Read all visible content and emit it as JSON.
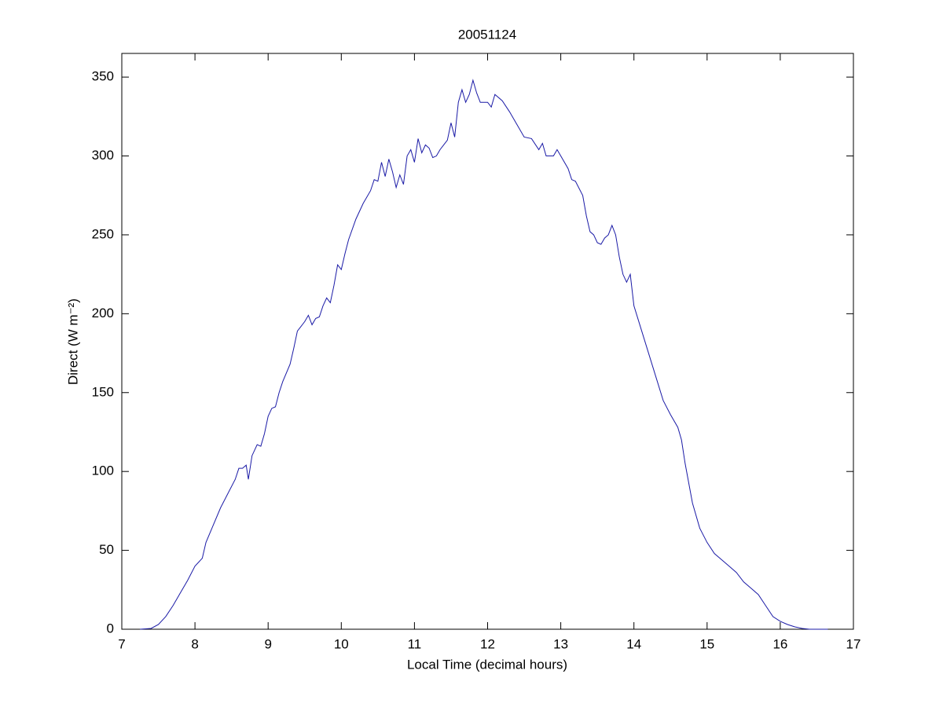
{
  "chart_data": {
    "type": "line",
    "title": "20051124",
    "xlabel": "Local Time (decimal hours)",
    "ylabel": "Direct (W m⁻²)",
    "color": "#1a1aa6",
    "x": [
      7.25,
      7.4,
      7.5,
      7.6,
      7.7,
      7.8,
      7.9,
      8.0,
      8.1,
      8.15,
      8.25,
      8.35,
      8.45,
      8.55,
      8.6,
      8.65,
      8.7,
      8.73,
      8.78,
      8.85,
      8.9,
      8.95,
      9.0,
      9.05,
      9.1,
      9.15,
      9.2,
      9.3,
      9.35,
      9.4,
      9.5,
      9.55,
      9.6,
      9.65,
      9.7,
      9.75,
      9.8,
      9.85,
      9.9,
      9.95,
      10.0,
      10.05,
      10.1,
      10.2,
      10.3,
      10.4,
      10.45,
      10.5,
      10.55,
      10.6,
      10.65,
      10.7,
      10.75,
      10.8,
      10.85,
      10.9,
      10.95,
      11.0,
      11.05,
      11.1,
      11.15,
      11.2,
      11.25,
      11.3,
      11.35,
      11.4,
      11.45,
      11.5,
      11.55,
      11.6,
      11.65,
      11.7,
      11.75,
      11.8,
      11.85,
      11.9,
      12.0,
      12.05,
      12.1,
      12.2,
      12.3,
      12.4,
      12.5,
      12.6,
      12.7,
      12.75,
      12.8,
      12.9,
      12.95,
      13.0,
      13.1,
      13.15,
      13.2,
      13.3,
      13.35,
      13.4,
      13.45,
      13.5,
      13.55,
      13.6,
      13.65,
      13.7,
      13.75,
      13.8,
      13.85,
      13.9,
      13.95,
      14.0,
      14.1,
      14.2,
      14.3,
      14.4,
      14.5,
      14.6,
      14.65,
      14.7,
      14.8,
      14.9,
      15.0,
      15.1,
      15.2,
      15.3,
      15.4,
      15.5,
      15.6,
      15.7,
      15.8,
      15.9,
      16.0,
      16.1,
      16.2,
      16.3,
      16.4,
      16.65
    ],
    "values": [
      0,
      0.5,
      3,
      8,
      15,
      23,
      31,
      40,
      45,
      55,
      66,
      77,
      86,
      95,
      102,
      102,
      104,
      95,
      110,
      117,
      116,
      124,
      135,
      140,
      141,
      150,
      157,
      168,
      178,
      189,
      195,
      199,
      193,
      197,
      198,
      205,
      210,
      207,
      218,
      231,
      228,
      238,
      247,
      260,
      270,
      278,
      285,
      284,
      296,
      287,
      298,
      290,
      280,
      288,
      282,
      300,
      304,
      296,
      311,
      302,
      307,
      305,
      299,
      300,
      304,
      307,
      310,
      321,
      312,
      334,
      342,
      334,
      339,
      348,
      340,
      334,
      334,
      331,
      339,
      335,
      328,
      320,
      312,
      311,
      304,
      308,
      300,
      300,
      304,
      300,
      292,
      285,
      284,
      275,
      262,
      252,
      250,
      245,
      244,
      248,
      250,
      256,
      250,
      236,
      225,
      220,
      225,
      205,
      190,
      175,
      160,
      145,
      136,
      128,
      120,
      105,
      80,
      64,
      55,
      48,
      44,
      40,
      36,
      30,
      26,
      22,
      15,
      8,
      5,
      3,
      1.5,
      0.5,
      0,
      0
    ],
    "xlim": [
      7,
      17
    ],
    "xticks": [
      7,
      8,
      9,
      10,
      11,
      12,
      13,
      14,
      15,
      16,
      17
    ],
    "ylim": [
      0,
      365
    ],
    "yticks": [
      0,
      50,
      100,
      150,
      200,
      250,
      300,
      350
    ]
  }
}
